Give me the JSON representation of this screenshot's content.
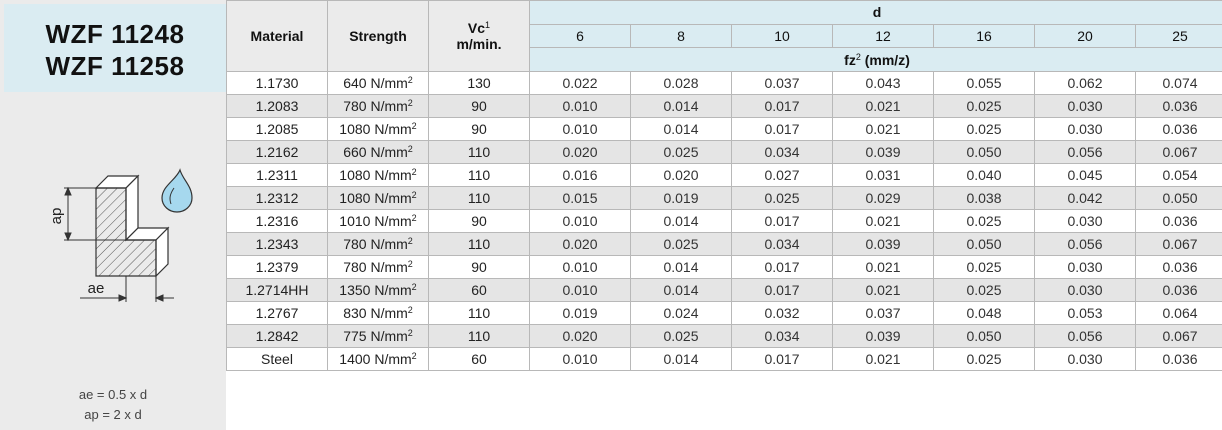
{
  "title": {
    "line1": "WZF 11248",
    "line2": "WZF 11258"
  },
  "diagram": {
    "ap_label": "ap",
    "ae_label": "ae"
  },
  "formulas": {
    "ae": "ae = 0.5 x d",
    "ap": "ap = 2  x d"
  },
  "headers": {
    "material": "Material",
    "strength": "Strength",
    "vc": "Vc",
    "vc_sup": "1",
    "vc_unit": "m/min.",
    "d": "d",
    "fz": "fz",
    "fz_sup": "2",
    "fz_unit": "(mm/z)"
  },
  "diameters": [
    "6",
    "8",
    "10",
    "12",
    "16",
    "20",
    "25"
  ],
  "strength_unit": "N/mm",
  "strength_exp": "2",
  "rows": [
    {
      "material": "1.1730",
      "strength": "640",
      "vc": "130",
      "fz": [
        "0.022",
        "0.028",
        "0.037",
        "0.043",
        "0.055",
        "0.062",
        "0.074"
      ]
    },
    {
      "material": "1.2083",
      "strength": "780",
      "vc": "90",
      "fz": [
        "0.010",
        "0.014",
        "0.017",
        "0.021",
        "0.025",
        "0.030",
        "0.036"
      ]
    },
    {
      "material": "1.2085",
      "strength": "1080",
      "vc": "90",
      "fz": [
        "0.010",
        "0.014",
        "0.017",
        "0.021",
        "0.025",
        "0.030",
        "0.036"
      ]
    },
    {
      "material": "1.2162",
      "strength": "660",
      "vc": "110",
      "fz": [
        "0.020",
        "0.025",
        "0.034",
        "0.039",
        "0.050",
        "0.056",
        "0.067"
      ]
    },
    {
      "material": "1.2311",
      "strength": "1080",
      "vc": "110",
      "fz": [
        "0.016",
        "0.020",
        "0.027",
        "0.031",
        "0.040",
        "0.045",
        "0.054"
      ]
    },
    {
      "material": "1.2312",
      "strength": "1080",
      "vc": "110",
      "fz": [
        "0.015",
        "0.019",
        "0.025",
        "0.029",
        "0.038",
        "0.042",
        "0.050"
      ]
    },
    {
      "material": "1.2316",
      "strength": "1010",
      "vc": "90",
      "fz": [
        "0.010",
        "0.014",
        "0.017",
        "0.021",
        "0.025",
        "0.030",
        "0.036"
      ]
    },
    {
      "material": "1.2343",
      "strength": "780",
      "vc": "110",
      "fz": [
        "0.020",
        "0.025",
        "0.034",
        "0.039",
        "0.050",
        "0.056",
        "0.067"
      ]
    },
    {
      "material": "1.2379",
      "strength": "780",
      "vc": "90",
      "fz": [
        "0.010",
        "0.014",
        "0.017",
        "0.021",
        "0.025",
        "0.030",
        "0.036"
      ]
    },
    {
      "material": "1.2714HH",
      "strength": "1350",
      "vc": "60",
      "fz": [
        "0.010",
        "0.014",
        "0.017",
        "0.021",
        "0.025",
        "0.030",
        "0.036"
      ]
    },
    {
      "material": "1.2767",
      "strength": "830",
      "vc": "110",
      "fz": [
        "0.019",
        "0.024",
        "0.032",
        "0.037",
        "0.048",
        "0.053",
        "0.064"
      ]
    },
    {
      "material": "1.2842",
      "strength": "775",
      "vc": "110",
      "fz": [
        "0.020",
        "0.025",
        "0.034",
        "0.039",
        "0.050",
        "0.056",
        "0.067"
      ]
    },
    {
      "material": "Steel",
      "strength": "1400",
      "vc": "60",
      "fz": [
        "0.010",
        "0.014",
        "0.017",
        "0.021",
        "0.025",
        "0.030",
        "0.036"
      ]
    }
  ]
}
